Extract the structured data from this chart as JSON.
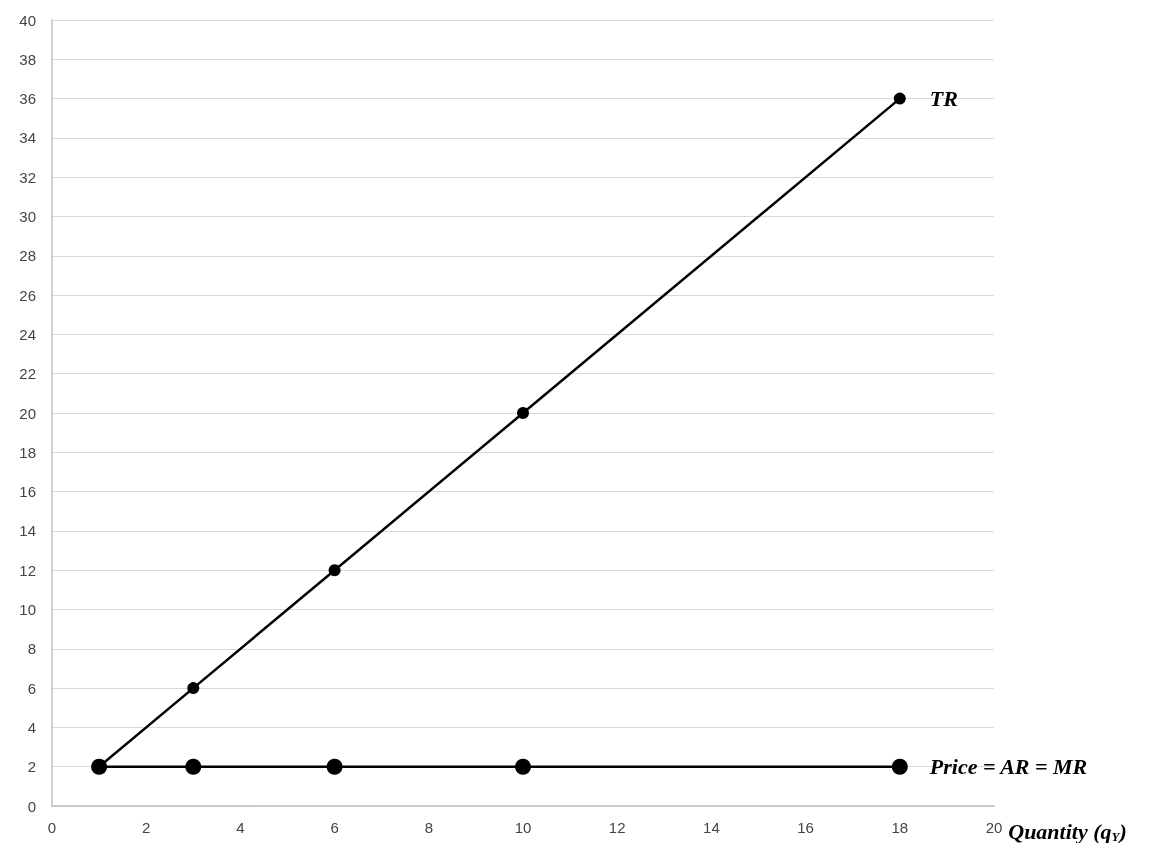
{
  "chart_data": {
    "type": "line",
    "xlabel": "Quantity (q$_{Y}$)",
    "x": [
      1,
      3,
      6,
      10,
      18
    ],
    "series": [
      {
        "name": "TR",
        "color": "#000000",
        "values": [
          2,
          6,
          12,
          20,
          36
        ]
      },
      {
        "name": "Price = AR = MR",
        "color": "#000000",
        "values": [
          2,
          2,
          2,
          2,
          2
        ]
      }
    ],
    "xlim": [
      0,
      20
    ],
    "xticks": [
      0,
      2,
      4,
      6,
      8,
      10,
      12,
      14,
      16,
      18,
      20
    ],
    "ylim": [
      0,
      40
    ],
    "yticks": [
      0,
      2,
      4,
      6,
      8,
      10,
      12,
      14,
      16,
      18,
      20,
      22,
      24,
      26,
      28,
      30,
      32,
      34,
      36,
      38,
      40
    ],
    "grid": "y",
    "legend": false,
    "marker": "circle",
    "line_style": "solid"
  }
}
